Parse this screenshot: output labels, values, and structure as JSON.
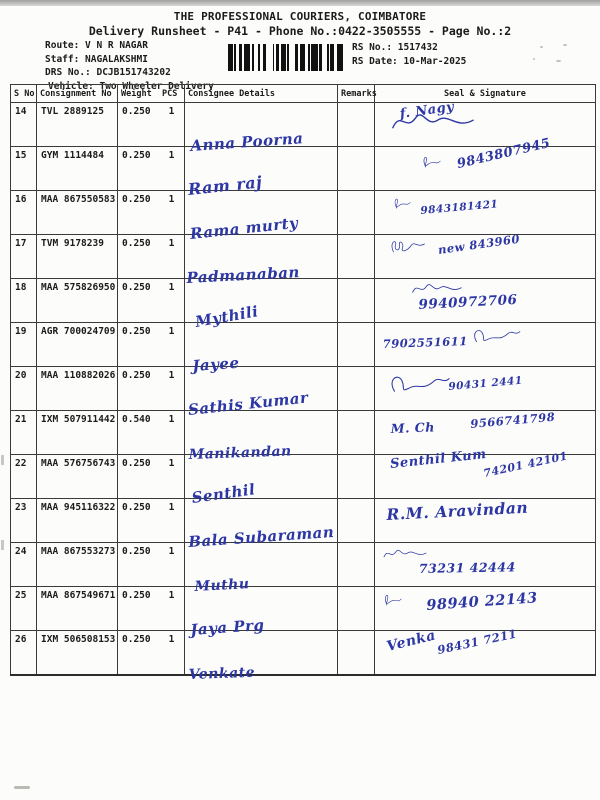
{
  "page": {
    "company_title": "THE PROFESSIONAL COURIERS, COIMBATORE",
    "runsheet_title": "Delivery Runsheet - P41 - Phone No.:0422-3505555 - Page No.:2"
  },
  "meta": [
    {
      "label": "Route:",
      "value": "V N R NAGAR"
    },
    {
      "label": "Staff:",
      "value": "NAGALAKSHMI"
    },
    {
      "label": "DRS No.:",
      "value": "DCJB151743202"
    },
    {
      "label": "Vehicle:",
      "value": "Two Wheeler Delivery"
    }
  ],
  "rs_info": [
    {
      "label": "RS No.:",
      "value": "1517432"
    },
    {
      "label": "RS Date:",
      "value": "10-Mar-2025"
    }
  ],
  "icons": {
    "barcode": "shipment-barcode"
  },
  "table": {
    "columns": {
      "sno": "S No",
      "consignment": "Consignment No",
      "weight": "Weight",
      "pcs": "PCS",
      "consignee": "Consignee Details",
      "remarks": "Remarks",
      "seal": "Seal & Signature"
    },
    "rows": [
      {
        "sno": "14",
        "consignment_no": "TVL 2889125",
        "weight": "0.250",
        "pcs": "1",
        "consignee": "Anna Poorna",
        "remarks": "",
        "signature_name": "f. Nagy",
        "signature_phone": ""
      },
      {
        "sno": "15",
        "consignment_no": "GYM 1114484",
        "weight": "0.250",
        "pcs": "1",
        "consignee": "Ram raj",
        "remarks": "",
        "signature_name": "",
        "signature_phone": "9843807945"
      },
      {
        "sno": "16",
        "consignment_no": "MAA 867550583",
        "weight": "0.250",
        "pcs": "1",
        "consignee": "Rama murty",
        "remarks": "",
        "signature_name": "",
        "signature_phone": "9843181421"
      },
      {
        "sno": "17",
        "consignment_no": "TVM 9178239",
        "weight": "0.250",
        "pcs": "1",
        "consignee": "Padmanaban",
        "remarks": "",
        "signature_name": "",
        "signature_phone": "new 843960"
      },
      {
        "sno": "18",
        "consignment_no": "MAA 575826950",
        "weight": "0.250",
        "pcs": "1",
        "consignee": "Mythili",
        "remarks": "",
        "signature_name": "",
        "signature_phone": "9940972706"
      },
      {
        "sno": "19",
        "consignment_no": "AGR 700024709",
        "weight": "0.250",
        "pcs": "1",
        "consignee": "Jayee",
        "remarks": "",
        "signature_name": "",
        "signature_phone": "7902551611"
      },
      {
        "sno": "20",
        "consignment_no": "MAA 110882026",
        "weight": "0.250",
        "pcs": "1",
        "consignee": "Sathis Kumar",
        "remarks": "",
        "signature_name": "",
        "signature_phone": "90431 2441"
      },
      {
        "sno": "21",
        "consignment_no": "IXM 507911442",
        "weight": "0.540",
        "pcs": "1",
        "consignee": "Manikandan",
        "remarks": "",
        "signature_name": "M. Ch",
        "signature_phone": "9566741798"
      },
      {
        "sno": "22",
        "consignment_no": "MAA 576756743",
        "weight": "0.250",
        "pcs": "1",
        "consignee": "Senthil",
        "remarks": "",
        "signature_name": "Senthil Kum",
        "signature_phone": "74201 42101"
      },
      {
        "sno": "23",
        "consignment_no": "MAA 945116322",
        "weight": "0.250",
        "pcs": "1",
        "consignee": "Bala Subaraman",
        "remarks": "",
        "signature_name": "R.M. Aravindan",
        "signature_phone": ""
      },
      {
        "sno": "24",
        "consignment_no": "MAA 867553273",
        "weight": "0.250",
        "pcs": "1",
        "consignee": "Muthu",
        "remarks": "",
        "signature_name": "",
        "signature_phone": "73231 42444"
      },
      {
        "sno": "25",
        "consignment_no": "MAA 867549671",
        "weight": "0.250",
        "pcs": "1",
        "consignee": "Jaya Prg",
        "remarks": "",
        "signature_name": "",
        "signature_phone": "98940 22143"
      },
      {
        "sno": "26",
        "consignment_no": "IXM 506508153",
        "weight": "0.250",
        "pcs": "1",
        "consignee": "Venkate",
        "remarks": "",
        "signature_name": "Venka",
        "signature_phone": "98431 7211"
      }
    ]
  },
  "colors": {
    "ink_printed": "#1b1b1b",
    "ink_handwriting": "#2c36a4",
    "table_line": "#3a3a3a",
    "paper": "#fcfcfa"
  }
}
